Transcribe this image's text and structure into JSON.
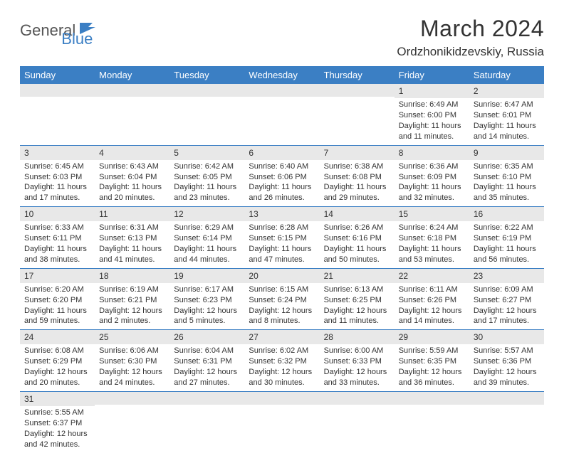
{
  "logo": {
    "part1": "General",
    "part2": "Blue"
  },
  "title": "March 2024",
  "location": "Ordzhonikidzevskiy, Russia",
  "colors": {
    "brand": "#3b7fc4",
    "header_bg": "#3b7fc4",
    "daynum_bg": "#e8e8e8"
  },
  "weekdays": [
    "Sunday",
    "Monday",
    "Tuesday",
    "Wednesday",
    "Thursday",
    "Friday",
    "Saturday"
  ],
  "weeks": [
    [
      null,
      null,
      null,
      null,
      null,
      {
        "n": "1",
        "sr": "Sunrise: 6:49 AM",
        "ss": "Sunset: 6:00 PM",
        "dl1": "Daylight: 11 hours",
        "dl2": "and 11 minutes."
      },
      {
        "n": "2",
        "sr": "Sunrise: 6:47 AM",
        "ss": "Sunset: 6:01 PM",
        "dl1": "Daylight: 11 hours",
        "dl2": "and 14 minutes."
      }
    ],
    [
      {
        "n": "3",
        "sr": "Sunrise: 6:45 AM",
        "ss": "Sunset: 6:03 PM",
        "dl1": "Daylight: 11 hours",
        "dl2": "and 17 minutes."
      },
      {
        "n": "4",
        "sr": "Sunrise: 6:43 AM",
        "ss": "Sunset: 6:04 PM",
        "dl1": "Daylight: 11 hours",
        "dl2": "and 20 minutes."
      },
      {
        "n": "5",
        "sr": "Sunrise: 6:42 AM",
        "ss": "Sunset: 6:05 PM",
        "dl1": "Daylight: 11 hours",
        "dl2": "and 23 minutes."
      },
      {
        "n": "6",
        "sr": "Sunrise: 6:40 AM",
        "ss": "Sunset: 6:06 PM",
        "dl1": "Daylight: 11 hours",
        "dl2": "and 26 minutes."
      },
      {
        "n": "7",
        "sr": "Sunrise: 6:38 AM",
        "ss": "Sunset: 6:08 PM",
        "dl1": "Daylight: 11 hours",
        "dl2": "and 29 minutes."
      },
      {
        "n": "8",
        "sr": "Sunrise: 6:36 AM",
        "ss": "Sunset: 6:09 PM",
        "dl1": "Daylight: 11 hours",
        "dl2": "and 32 minutes."
      },
      {
        "n": "9",
        "sr": "Sunrise: 6:35 AM",
        "ss": "Sunset: 6:10 PM",
        "dl1": "Daylight: 11 hours",
        "dl2": "and 35 minutes."
      }
    ],
    [
      {
        "n": "10",
        "sr": "Sunrise: 6:33 AM",
        "ss": "Sunset: 6:11 PM",
        "dl1": "Daylight: 11 hours",
        "dl2": "and 38 minutes."
      },
      {
        "n": "11",
        "sr": "Sunrise: 6:31 AM",
        "ss": "Sunset: 6:13 PM",
        "dl1": "Daylight: 11 hours",
        "dl2": "and 41 minutes."
      },
      {
        "n": "12",
        "sr": "Sunrise: 6:29 AM",
        "ss": "Sunset: 6:14 PM",
        "dl1": "Daylight: 11 hours",
        "dl2": "and 44 minutes."
      },
      {
        "n": "13",
        "sr": "Sunrise: 6:28 AM",
        "ss": "Sunset: 6:15 PM",
        "dl1": "Daylight: 11 hours",
        "dl2": "and 47 minutes."
      },
      {
        "n": "14",
        "sr": "Sunrise: 6:26 AM",
        "ss": "Sunset: 6:16 PM",
        "dl1": "Daylight: 11 hours",
        "dl2": "and 50 minutes."
      },
      {
        "n": "15",
        "sr": "Sunrise: 6:24 AM",
        "ss": "Sunset: 6:18 PM",
        "dl1": "Daylight: 11 hours",
        "dl2": "and 53 minutes."
      },
      {
        "n": "16",
        "sr": "Sunrise: 6:22 AM",
        "ss": "Sunset: 6:19 PM",
        "dl1": "Daylight: 11 hours",
        "dl2": "and 56 minutes."
      }
    ],
    [
      {
        "n": "17",
        "sr": "Sunrise: 6:20 AM",
        "ss": "Sunset: 6:20 PM",
        "dl1": "Daylight: 11 hours",
        "dl2": "and 59 minutes."
      },
      {
        "n": "18",
        "sr": "Sunrise: 6:19 AM",
        "ss": "Sunset: 6:21 PM",
        "dl1": "Daylight: 12 hours",
        "dl2": "and 2 minutes."
      },
      {
        "n": "19",
        "sr": "Sunrise: 6:17 AM",
        "ss": "Sunset: 6:23 PM",
        "dl1": "Daylight: 12 hours",
        "dl2": "and 5 minutes."
      },
      {
        "n": "20",
        "sr": "Sunrise: 6:15 AM",
        "ss": "Sunset: 6:24 PM",
        "dl1": "Daylight: 12 hours",
        "dl2": "and 8 minutes."
      },
      {
        "n": "21",
        "sr": "Sunrise: 6:13 AM",
        "ss": "Sunset: 6:25 PM",
        "dl1": "Daylight: 12 hours",
        "dl2": "and 11 minutes."
      },
      {
        "n": "22",
        "sr": "Sunrise: 6:11 AM",
        "ss": "Sunset: 6:26 PM",
        "dl1": "Daylight: 12 hours",
        "dl2": "and 14 minutes."
      },
      {
        "n": "23",
        "sr": "Sunrise: 6:09 AM",
        "ss": "Sunset: 6:27 PM",
        "dl1": "Daylight: 12 hours",
        "dl2": "and 17 minutes."
      }
    ],
    [
      {
        "n": "24",
        "sr": "Sunrise: 6:08 AM",
        "ss": "Sunset: 6:29 PM",
        "dl1": "Daylight: 12 hours",
        "dl2": "and 20 minutes."
      },
      {
        "n": "25",
        "sr": "Sunrise: 6:06 AM",
        "ss": "Sunset: 6:30 PM",
        "dl1": "Daylight: 12 hours",
        "dl2": "and 24 minutes."
      },
      {
        "n": "26",
        "sr": "Sunrise: 6:04 AM",
        "ss": "Sunset: 6:31 PM",
        "dl1": "Daylight: 12 hours",
        "dl2": "and 27 minutes."
      },
      {
        "n": "27",
        "sr": "Sunrise: 6:02 AM",
        "ss": "Sunset: 6:32 PM",
        "dl1": "Daylight: 12 hours",
        "dl2": "and 30 minutes."
      },
      {
        "n": "28",
        "sr": "Sunrise: 6:00 AM",
        "ss": "Sunset: 6:33 PM",
        "dl1": "Daylight: 12 hours",
        "dl2": "and 33 minutes."
      },
      {
        "n": "29",
        "sr": "Sunrise: 5:59 AM",
        "ss": "Sunset: 6:35 PM",
        "dl1": "Daylight: 12 hours",
        "dl2": "and 36 minutes."
      },
      {
        "n": "30",
        "sr": "Sunrise: 5:57 AM",
        "ss": "Sunset: 6:36 PM",
        "dl1": "Daylight: 12 hours",
        "dl2": "and 39 minutes."
      }
    ],
    [
      {
        "n": "31",
        "sr": "Sunrise: 5:55 AM",
        "ss": "Sunset: 6:37 PM",
        "dl1": "Daylight: 12 hours",
        "dl2": "and 42 minutes."
      },
      null,
      null,
      null,
      null,
      null,
      null
    ]
  ]
}
